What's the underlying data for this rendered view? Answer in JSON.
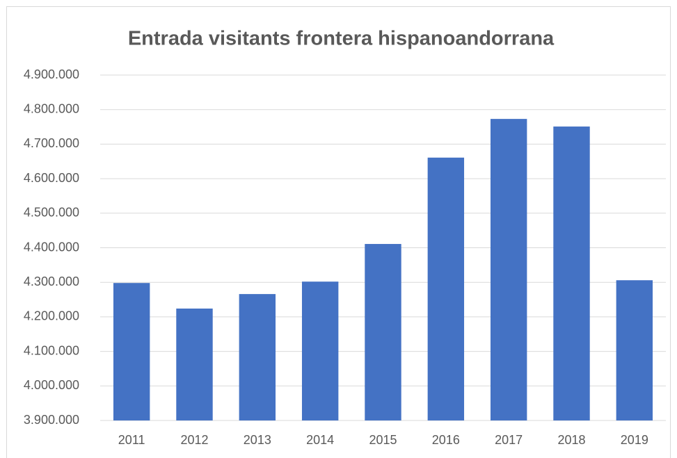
{
  "chart_data": {
    "type": "bar",
    "title": "Entrada visitants frontera hispanoandorrana",
    "categories": [
      "2011",
      "2012",
      "2013",
      "2014",
      "2015",
      "2016",
      "2017",
      "2018",
      "2019"
    ],
    "values": [
      4298000,
      4224000,
      4266000,
      4302000,
      4411000,
      4661000,
      4773000,
      4751000,
      4306000
    ],
    "color": "#4472c4",
    "ylim": [
      3900000,
      4900000
    ],
    "yticks": [
      {
        "value": 3900000,
        "label": "3.900.000"
      },
      {
        "value": 4000000,
        "label": "4.000.000"
      },
      {
        "value": 4100000,
        "label": "4.100.000"
      },
      {
        "value": 4200000,
        "label": "4.200.000"
      },
      {
        "value": 4300000,
        "label": "4.300.000"
      },
      {
        "value": 4400000,
        "label": "4.400.000"
      },
      {
        "value": 4500000,
        "label": "4.500.000"
      },
      {
        "value": 4600000,
        "label": "4.600.000"
      },
      {
        "value": 4700000,
        "label": "4.700.000"
      },
      {
        "value": 4800000,
        "label": "4.800.000"
      },
      {
        "value": 4900000,
        "label": "4.900.000"
      }
    ],
    "grid": true
  }
}
